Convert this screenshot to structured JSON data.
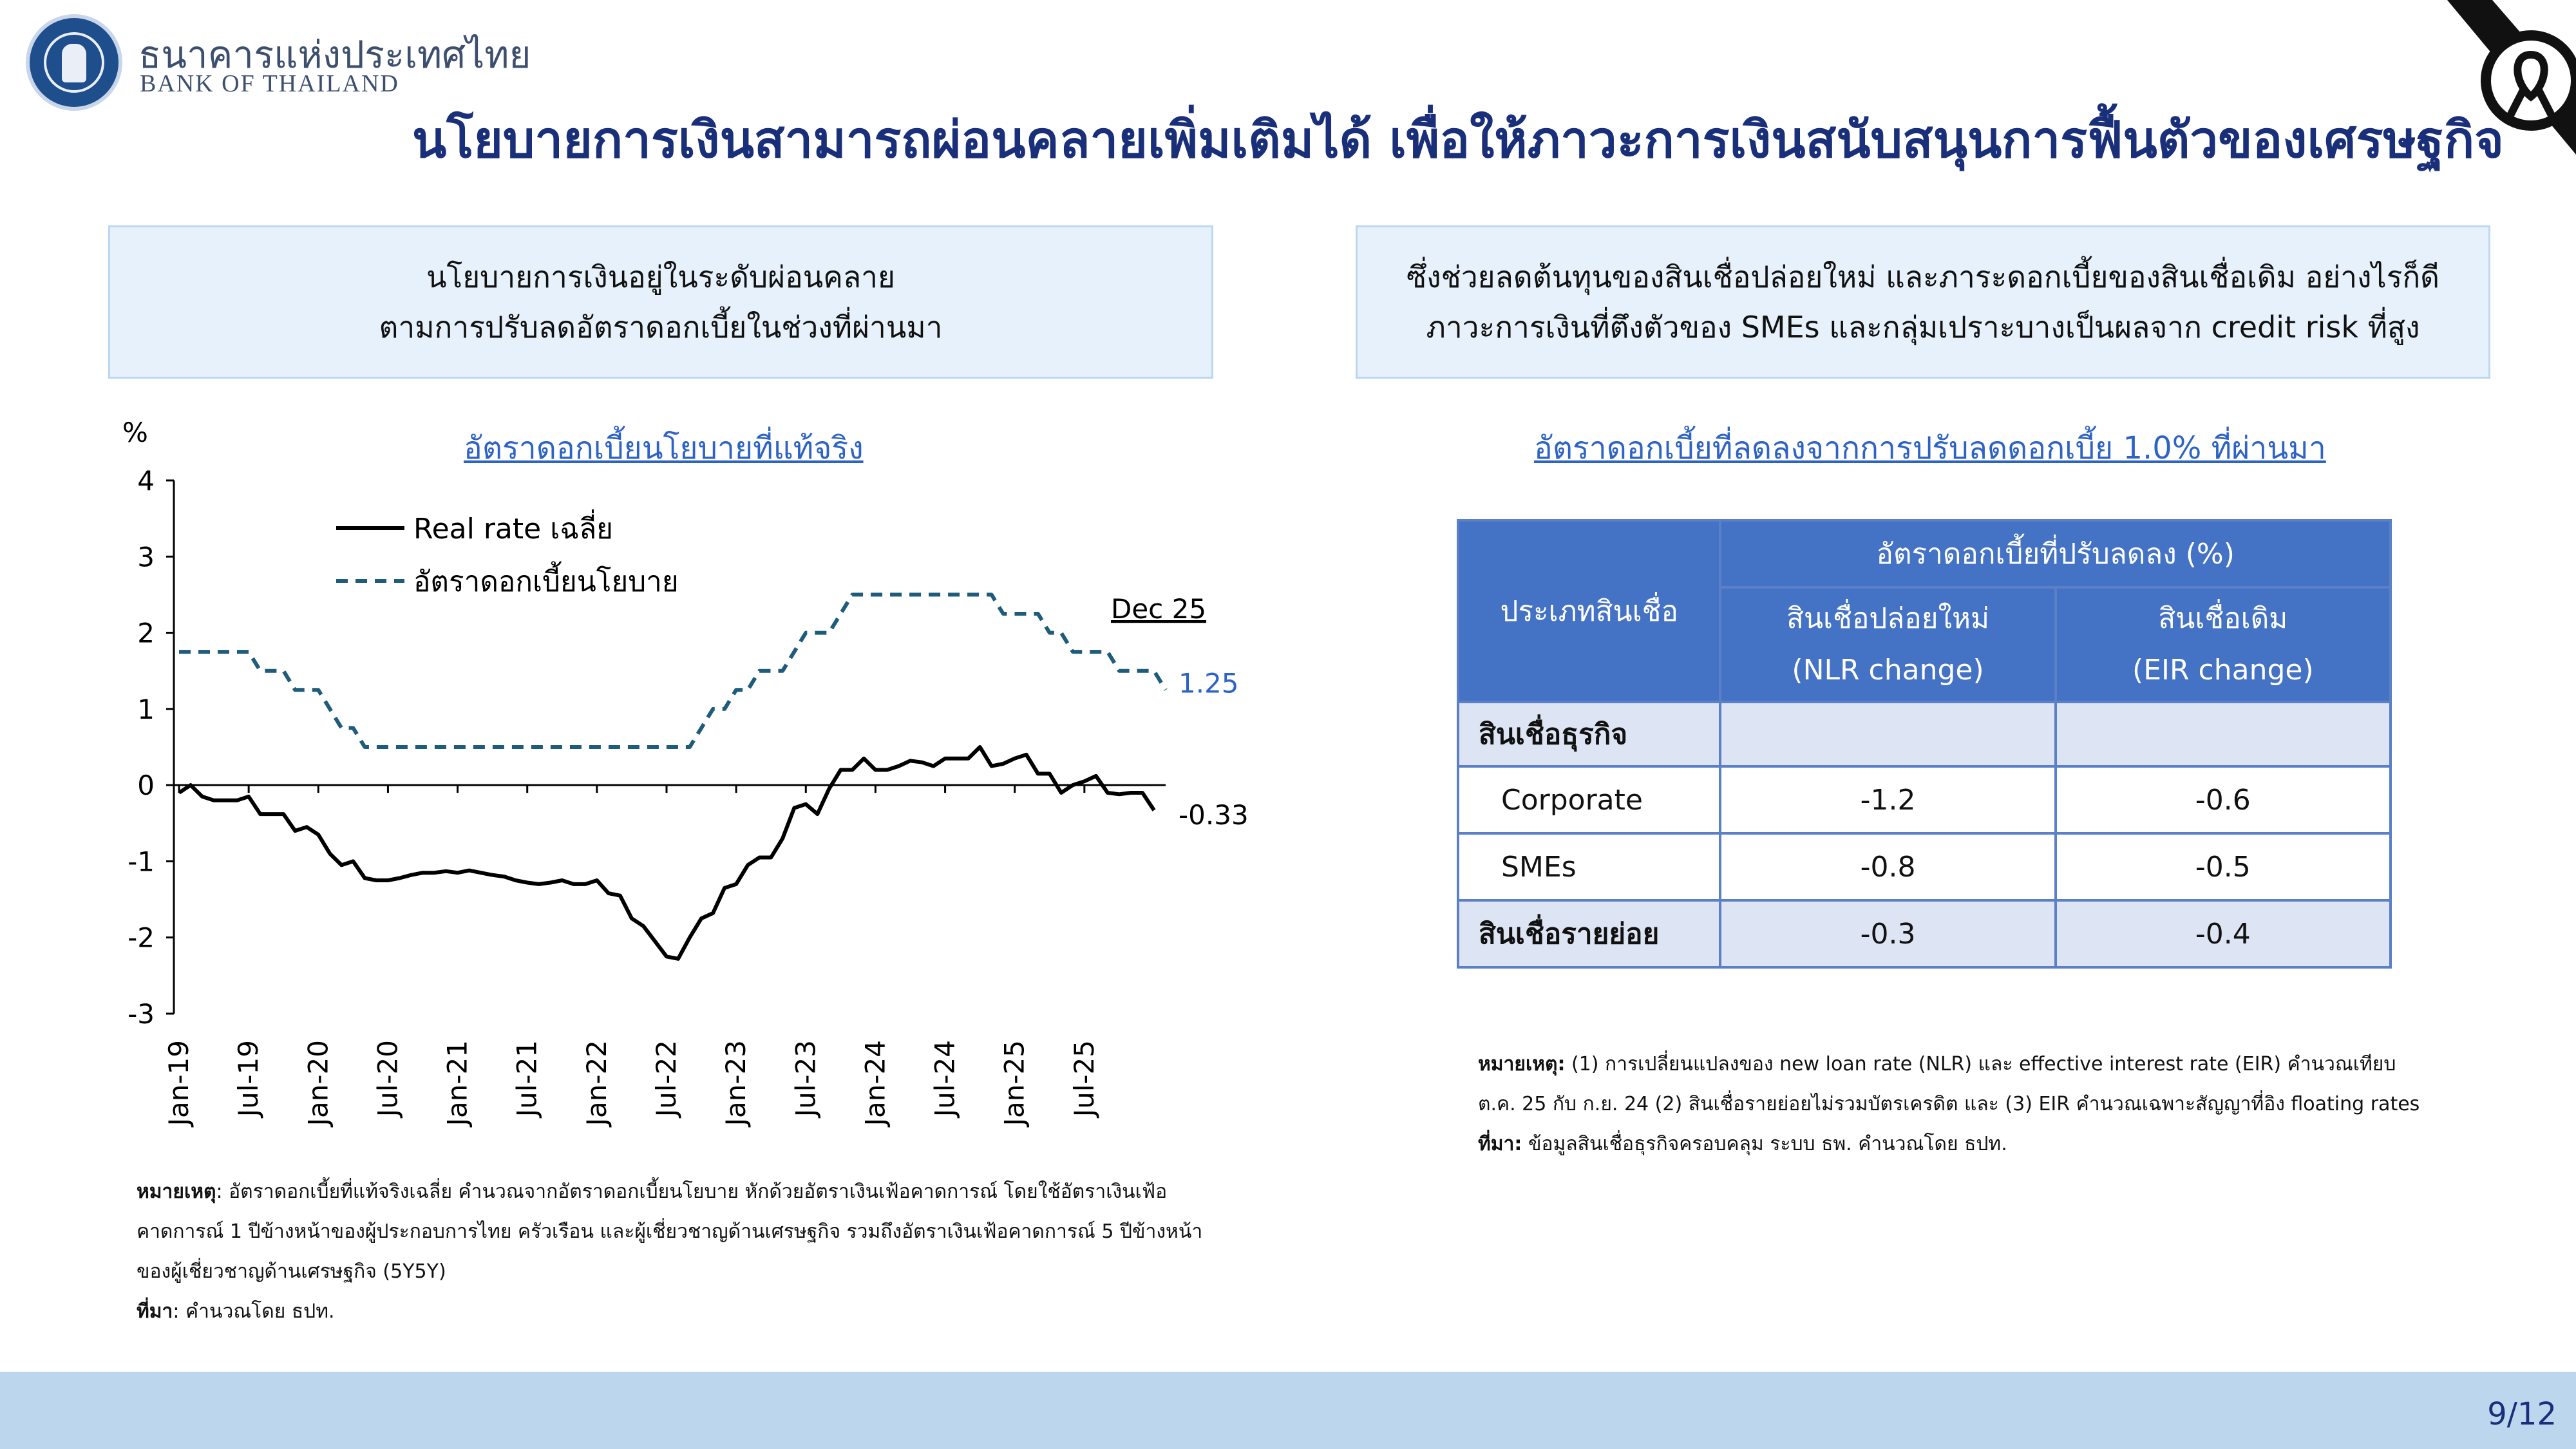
{
  "header": {
    "org_name_th": "ธนาคารแห่งประเทศไทย",
    "org_name_en": "BANK OF THAILAND",
    "title": "นโยบายการเงินสามารถผ่อนคลายเพิ่มเติมได้ เพื่อให้ภาวะการเงินสนับสนุนการฟื้นตัวของเศรษฐกิจ"
  },
  "left_box": {
    "line1": "นโยบายการเงินอยู่ในระดับผ่อนคลาย",
    "line2": "ตามการปรับลดอัตราดอกเบี้ยในช่วงที่ผ่านมา"
  },
  "right_box": {
    "line1": "ซึ่งช่วยลดต้นทุนของสินเชื่อปล่อยใหม่ และภาระดอกเบี้ยของสินเชื่อเดิม อย่างไรก็ดี",
    "line2": "ภาวะการเงินที่ตึงตัวของ SMEs และกลุ่มเปราะบางเป็นผลจาก credit risk ที่สูง"
  },
  "chart_data": {
    "type": "line",
    "title": "อัตราดอกเบี้ยนโยบายที่แท้จริง",
    "ylabel": "%",
    "ylim": [
      -3,
      4
    ],
    "yticks": [
      "4",
      "3",
      "2",
      "1",
      "0",
      "-1",
      "-2",
      "-3"
    ],
    "xtick_labels": [
      "Jan-19",
      "Jul-19",
      "Jan-20",
      "Jul-20",
      "Jan-21",
      "Jul-21",
      "Jan-22",
      "Jul-22",
      "Jan-23",
      "Jul-23",
      "Jan-24",
      "Jul-24",
      "Jan-25",
      "Jul-25"
    ],
    "annotation": "Dec 25",
    "series": [
      {
        "name": "Real rate เฉลี่ย",
        "style": "solid",
        "color": "#000000",
        "end_label": "-0.33",
        "values": [
          -0.1,
          0.0,
          -0.15,
          -0.2,
          -0.2,
          -0.2,
          -0.15,
          -0.38,
          -0.38,
          -0.38,
          -0.6,
          -0.55,
          -0.65,
          -0.9,
          -1.05,
          -1.0,
          -1.22,
          -1.25,
          -1.25,
          -1.22,
          -1.18,
          -1.15,
          -1.15,
          -1.13,
          -1.15,
          -1.12,
          -1.15,
          -1.18,
          -1.2,
          -1.25,
          -1.28,
          -1.3,
          -1.28,
          -1.25,
          -1.3,
          -1.3,
          -1.25,
          -1.42,
          -1.45,
          -1.75,
          -1.85,
          -2.05,
          -2.25,
          -2.28,
          -2.0,
          -1.75,
          -1.68,
          -1.35,
          -1.3,
          -1.05,
          -0.95,
          -0.95,
          -0.7,
          -0.3,
          -0.25,
          -0.38,
          -0.05,
          0.2,
          0.2,
          0.35,
          0.2,
          0.2,
          0.25,
          0.32,
          0.3,
          0.25,
          0.35,
          0.35,
          0.35,
          0.5,
          0.25,
          0.28,
          0.35,
          0.4,
          0.15,
          0.15,
          -0.1,
          0.0,
          0.05,
          0.12,
          -0.1,
          -0.12,
          -0.1,
          -0.1,
          -0.33
        ]
      },
      {
        "name": "อัตราดอกเบี้ยนโยบาย",
        "style": "dashed",
        "color": "#1f5c7a",
        "end_label": "1.25",
        "values": [
          1.75,
          1.75,
          1.75,
          1.75,
          1.75,
          1.75,
          1.75,
          1.5,
          1.5,
          1.5,
          1.25,
          1.25,
          1.25,
          1.0,
          0.75,
          0.75,
          0.5,
          0.5,
          0.5,
          0.5,
          0.5,
          0.5,
          0.5,
          0.5,
          0.5,
          0.5,
          0.5,
          0.5,
          0.5,
          0.5,
          0.5,
          0.5,
          0.5,
          0.5,
          0.5,
          0.5,
          0.5,
          0.5,
          0.5,
          0.5,
          0.5,
          0.5,
          0.5,
          0.5,
          0.5,
          0.75,
          1.0,
          1.0,
          1.25,
          1.25,
          1.5,
          1.5,
          1.5,
          1.75,
          2.0,
          2.0,
          2.0,
          2.25,
          2.5,
          2.5,
          2.5,
          2.5,
          2.5,
          2.5,
          2.5,
          2.5,
          2.5,
          2.5,
          2.5,
          2.5,
          2.5,
          2.25,
          2.25,
          2.25,
          2.25,
          2.0,
          2.0,
          1.75,
          1.75,
          1.75,
          1.75,
          1.5,
          1.5,
          1.5,
          1.5,
          1.25
        ]
      }
    ]
  },
  "table_section": {
    "title": "อัตราดอกเบี้ยที่ลดลงจากการปรับลดดอกเบี้ย 1.0% ที่ผ่านมา",
    "col_category": "ประเภทสินเชื่อ",
    "col_group": "อัตราดอกเบี้ยที่ปรับลดลง (%)",
    "col1_line1": "สินเชื่อปล่อยใหม่",
    "col1_line2": "(NLR change)",
    "col2_line1": "สินเชื่อเดิม",
    "col2_line2": "(EIR change)",
    "rows": [
      {
        "label": "สินเชื่อธุรกิจ",
        "nlr": "",
        "eir": ""
      },
      {
        "label": "Corporate",
        "nlr": "-1.2",
        "eir": "-0.6"
      },
      {
        "label": "SMEs",
        "nlr": "-0.8",
        "eir": "-0.5"
      },
      {
        "label": "สินเชื่อรายย่อย",
        "nlr": "-0.3",
        "eir": "-0.4"
      }
    ]
  },
  "notes_left": {
    "label_note": "หมายเหตุ",
    "line1": ": อัตราดอกเบี้ยที่แท้จริงเฉลี่ย คำนวณจากอัตราดอกเบี้ยนโยบาย หักด้วยอัตราเงินเฟ้อคาดการณ์ โดยใช้อัตราเงินเฟ้อ",
    "line2": "คาดการณ์ 1 ปีข้างหน้าของผู้ประกอบการไทย ครัวเรือน และผู้เชี่ยวชาญด้านเศรษฐกิจ รวมถึงอัตราเงินเฟ้อคาดการณ์ 5 ปีข้างหน้า",
    "line3": "ของผู้เชี่ยวชาญด้านเศรษฐกิจ (5Y5Y)",
    "label_source": "ที่มา",
    "source": ": คำนวณโดย ธปท."
  },
  "notes_right": {
    "label_note": "หมายเหตุ:",
    "line1": " (1) การเปลี่ยนแปลงของ new loan rate (NLR) และ effective interest rate (EIR) คำนวณเทียบ",
    "line2": "ต.ค. 25 กับ ก.ย. 24 (2) สินเชื่อรายย่อยไม่รวมบัตรเครดิต และ (3) EIR คำนวณเฉพาะสัญญาที่อิง floating rates",
    "label_source": "ที่มา:",
    "source": " ข้อมูลสินเชื่อธุรกิจครอบคลุม ระบบ ธพ. คำนวณโดย ธปท."
  },
  "footer": {
    "page": "9/12"
  }
}
